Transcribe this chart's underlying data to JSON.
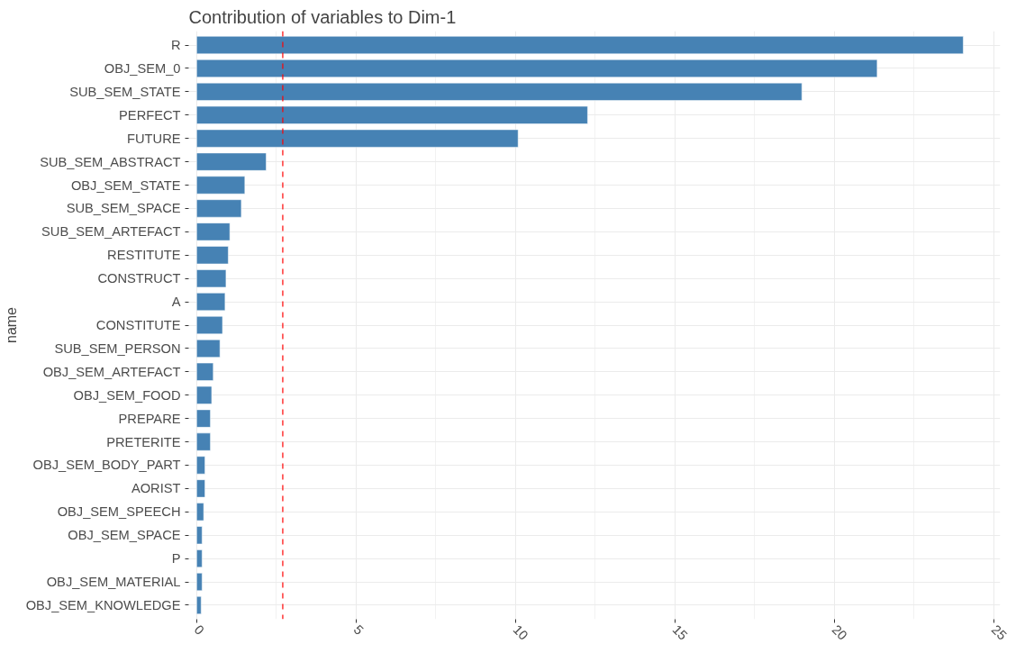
{
  "chart_data": {
    "type": "bar",
    "orientation": "horizontal",
    "title": "Contribution of variables to Dim-1",
    "ylabel": "name",
    "categories": [
      "R",
      "OBJ_SEM_0",
      "SUB_SEM_STATE",
      "PERFECT",
      "FUTURE",
      "SUB_SEM_ABSTRACT",
      "OBJ_SEM_STATE",
      "SUB_SEM_SPACE",
      "SUB_SEM_ARTEFACT",
      "RESTITUTE",
      "CONSTRUCT",
      "A",
      "CONSTITUTE",
      "SUB_SEM_PERSON",
      "OBJ_SEM_ARTEFACT",
      "OBJ_SEM_FOOD",
      "PREPARE",
      "PRETERITE",
      "OBJ_SEM_BODY_PART",
      "AORIST",
      "OBJ_SEM_SPEECH",
      "OBJ_SEM_SPACE",
      "P",
      "OBJ_SEM_MATERIAL",
      "OBJ_SEM_KNOWLEDGE"
    ],
    "values": [
      24.04,
      21.34,
      18.98,
      12.26,
      10.08,
      2.18,
      1.51,
      1.4,
      1.04,
      0.99,
      0.92,
      0.89,
      0.81,
      0.73,
      0.52,
      0.47,
      0.43,
      0.43,
      0.26,
      0.26,
      0.22,
      0.17,
      0.17,
      0.17,
      0.14
    ],
    "color": "#4682b4",
    "xlim": [
      -0.25,
      25.2
    ],
    "xticks": [
      0,
      5,
      10,
      15,
      20,
      25
    ],
    "ref_lines": [
      {
        "axis": "x",
        "value": 2.7,
        "color": "#ff0000",
        "line_style": "dashed"
      }
    ],
    "grid": true
  }
}
